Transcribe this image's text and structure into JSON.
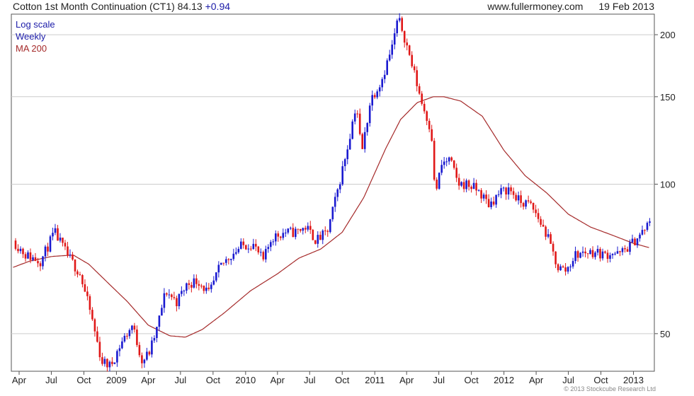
{
  "header": {
    "title": "Cotton 1st Month Continuation (CT1) 84.13",
    "change": "+0.94",
    "source": "www.fullermoney.com",
    "date": "19 Feb 2013"
  },
  "legend": {
    "scale": "Log scale",
    "period": "Weekly",
    "ma": "MA 200"
  },
  "colors": {
    "up": "#1a1ad0",
    "down": "#e01818",
    "ma": "#a52a2a",
    "grid": "#cccccc",
    "axis": "#555555"
  },
  "footer": {
    "copyright": "© 2013 Stockcube Research Ltd"
  },
  "chart_data": {
    "type": "candlestick",
    "scale": "log",
    "y_ticks": [
      50,
      100,
      150,
      200
    ],
    "x_ticks": [
      "Apr",
      "Jul",
      "Oct",
      "2009",
      "Apr",
      "Jul",
      "Oct",
      "2010",
      "Apr",
      "Jul",
      "Oct",
      "2011",
      "Apr",
      "Jul",
      "Oct",
      "2012",
      "Apr",
      "Jul",
      "Oct",
      "2013"
    ],
    "x_tick_dates": [
      "2008-04",
      "2008-07",
      "2008-10",
      "2009-01",
      "2009-04",
      "2009-07",
      "2009-10",
      "2010-01",
      "2010-04",
      "2010-07",
      "2010-10",
      "2011-01",
      "2011-04",
      "2011-07",
      "2011-10",
      "2012-01",
      "2012-04",
      "2012-07",
      "2012-10",
      "2013-01"
    ],
    "ylim": [
      42,
      220
    ],
    "xlim": [
      "2008-03-10",
      "2013-03-01"
    ],
    "grid": "horizontal",
    "legend_position": "top-left",
    "series": [
      {
        "name": "MA 200",
        "type": "line",
        "points": [
          [
            "2008-03-15",
            68
          ],
          [
            "2008-05-01",
            70
          ],
          [
            "2008-07-01",
            71.5
          ],
          [
            "2008-09-01",
            72
          ],
          [
            "2008-10-15",
            69
          ],
          [
            "2008-12-01",
            64
          ],
          [
            "2009-02-01",
            58
          ],
          [
            "2009-04-01",
            52
          ],
          [
            "2009-06-01",
            49.5
          ],
          [
            "2009-07-15",
            49.2
          ],
          [
            "2009-09-01",
            51
          ],
          [
            "2009-11-01",
            55
          ],
          [
            "2010-01-15",
            61
          ],
          [
            "2010-04-01",
            66
          ],
          [
            "2010-06-01",
            71
          ],
          [
            "2010-08-01",
            74
          ],
          [
            "2010-10-01",
            80
          ],
          [
            "2010-12-01",
            94
          ],
          [
            "2011-02-01",
            118
          ],
          [
            "2011-03-15",
            135
          ],
          [
            "2011-05-01",
            146
          ],
          [
            "2011-06-15",
            150
          ],
          [
            "2011-07-15",
            150
          ],
          [
            "2011-09-01",
            147
          ],
          [
            "2011-11-01",
            137
          ],
          [
            "2012-01-01",
            117
          ],
          [
            "2012-03-01",
            104
          ],
          [
            "2012-05-01",
            96
          ],
          [
            "2012-07-01",
            87
          ],
          [
            "2012-09-01",
            82
          ],
          [
            "2012-11-01",
            79
          ],
          [
            "2013-01-01",
            76
          ],
          [
            "2013-02-15",
            74.5
          ]
        ]
      },
      {
        "name": "Weekly",
        "type": "candlestick",
        "anchors": [
          [
            "2008-03-15",
            77
          ],
          [
            "2008-04-20",
            72
          ],
          [
            "2008-06-01",
            70
          ],
          [
            "2008-07-10",
            80
          ],
          [
            "2008-08-15",
            72
          ],
          [
            "2008-09-20",
            66
          ],
          [
            "2008-10-20",
            55
          ],
          [
            "2008-11-20",
            44
          ],
          [
            "2008-12-15",
            43
          ],
          [
            "2009-01-15",
            48
          ],
          [
            "2009-02-15",
            52
          ],
          [
            "2009-03-15",
            44
          ],
          [
            "2009-04-05",
            46
          ],
          [
            "2009-04-25",
            51
          ],
          [
            "2009-05-20",
            61
          ],
          [
            "2009-06-20",
            58
          ],
          [
            "2009-07-20",
            63
          ],
          [
            "2009-08-20",
            64
          ],
          [
            "2009-09-20",
            60
          ],
          [
            "2009-10-20",
            68
          ],
          [
            "2009-11-20",
            72
          ],
          [
            "2009-12-20",
            75
          ],
          [
            "2010-01-20",
            76
          ],
          [
            "2010-02-20",
            70
          ],
          [
            "2010-03-15",
            78
          ],
          [
            "2010-04-20",
            80
          ],
          [
            "2010-05-20",
            80
          ],
          [
            "2010-06-20",
            82
          ],
          [
            "2010-07-20",
            77
          ],
          [
            "2010-08-20",
            80
          ],
          [
            "2010-09-15",
            95
          ],
          [
            "2010-10-15",
            118
          ],
          [
            "2010-11-10",
            146
          ],
          [
            "2010-11-25",
            115
          ],
          [
            "2010-12-20",
            148
          ],
          [
            "2011-01-20",
            162
          ],
          [
            "2011-02-20",
            190
          ],
          [
            "2011-03-07",
            215
          ],
          [
            "2011-03-20",
            205
          ],
          [
            "2011-04-15",
            175
          ],
          [
            "2011-05-15",
            145
          ],
          [
            "2011-06-10",
            128
          ],
          [
            "2011-06-20",
            95
          ],
          [
            "2011-07-10",
            110
          ],
          [
            "2011-08-01",
            112
          ],
          [
            "2011-08-25",
            100
          ],
          [
            "2011-09-20",
            100
          ],
          [
            "2011-10-20",
            97
          ],
          [
            "2011-11-20",
            91
          ],
          [
            "2011-12-20",
            96
          ],
          [
            "2012-01-15",
            98
          ],
          [
            "2012-02-15",
            92
          ],
          [
            "2012-03-15",
            91
          ],
          [
            "2012-04-01",
            87
          ],
          [
            "2012-05-01",
            79
          ],
          [
            "2012-06-01",
            68
          ],
          [
            "2012-06-25",
            67
          ],
          [
            "2012-07-20",
            72
          ],
          [
            "2012-08-20",
            73
          ],
          [
            "2012-09-15",
            73
          ],
          [
            "2012-10-15",
            72
          ],
          [
            "2012-11-01",
            73
          ],
          [
            "2012-11-20",
            72
          ],
          [
            "2012-12-20",
            75
          ],
          [
            "2013-01-20",
            79
          ],
          [
            "2013-02-19",
            84.13
          ]
        ]
      }
    ]
  }
}
